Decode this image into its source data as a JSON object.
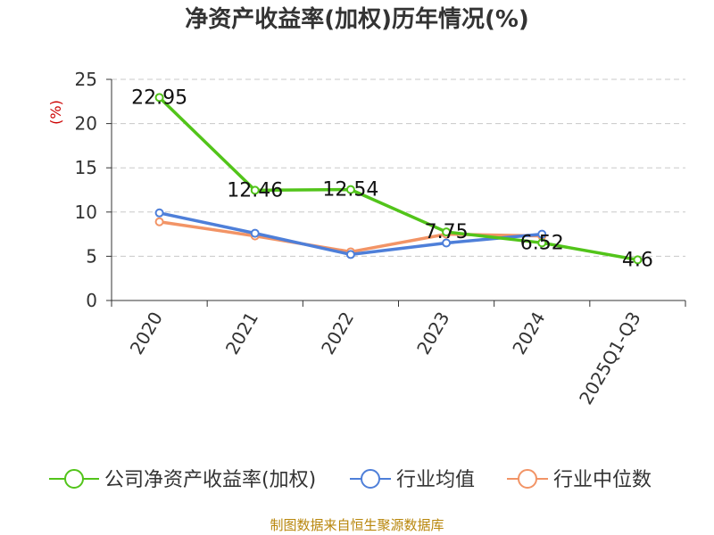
{
  "chart_data": {
    "type": "line",
    "title": "净资产收益率(加权)历年情况(%)",
    "ylabel": "(%)",
    "xlabel": "",
    "categories": [
      "2020",
      "2021",
      "2022",
      "2023",
      "2024",
      "2025Q1-Q3"
    ],
    "ylim": [
      0,
      25
    ],
    "yticks": [
      0,
      5,
      10,
      15,
      20,
      25
    ],
    "grid": true,
    "legend_position": "bottom",
    "series": [
      {
        "name": "公司净资产收益率(加权)",
        "color": "#52c41a",
        "values": [
          22.95,
          12.46,
          12.54,
          7.75,
          6.52,
          4.6
        ],
        "labels": [
          "22.95",
          "12.46",
          "12.54",
          "7.75",
          "6.52",
          "4.6"
        ]
      },
      {
        "name": "行业均值",
        "color": "#4e7fd9",
        "values": [
          9.9,
          7.6,
          5.2,
          6.5,
          7.5,
          null
        ]
      },
      {
        "name": "行业中位数",
        "color": "#f29466",
        "values": [
          8.9,
          7.3,
          5.5,
          7.5,
          7.3,
          null
        ]
      }
    ]
  },
  "footer": {
    "source": "制图数据来自恒生聚源数据库"
  }
}
